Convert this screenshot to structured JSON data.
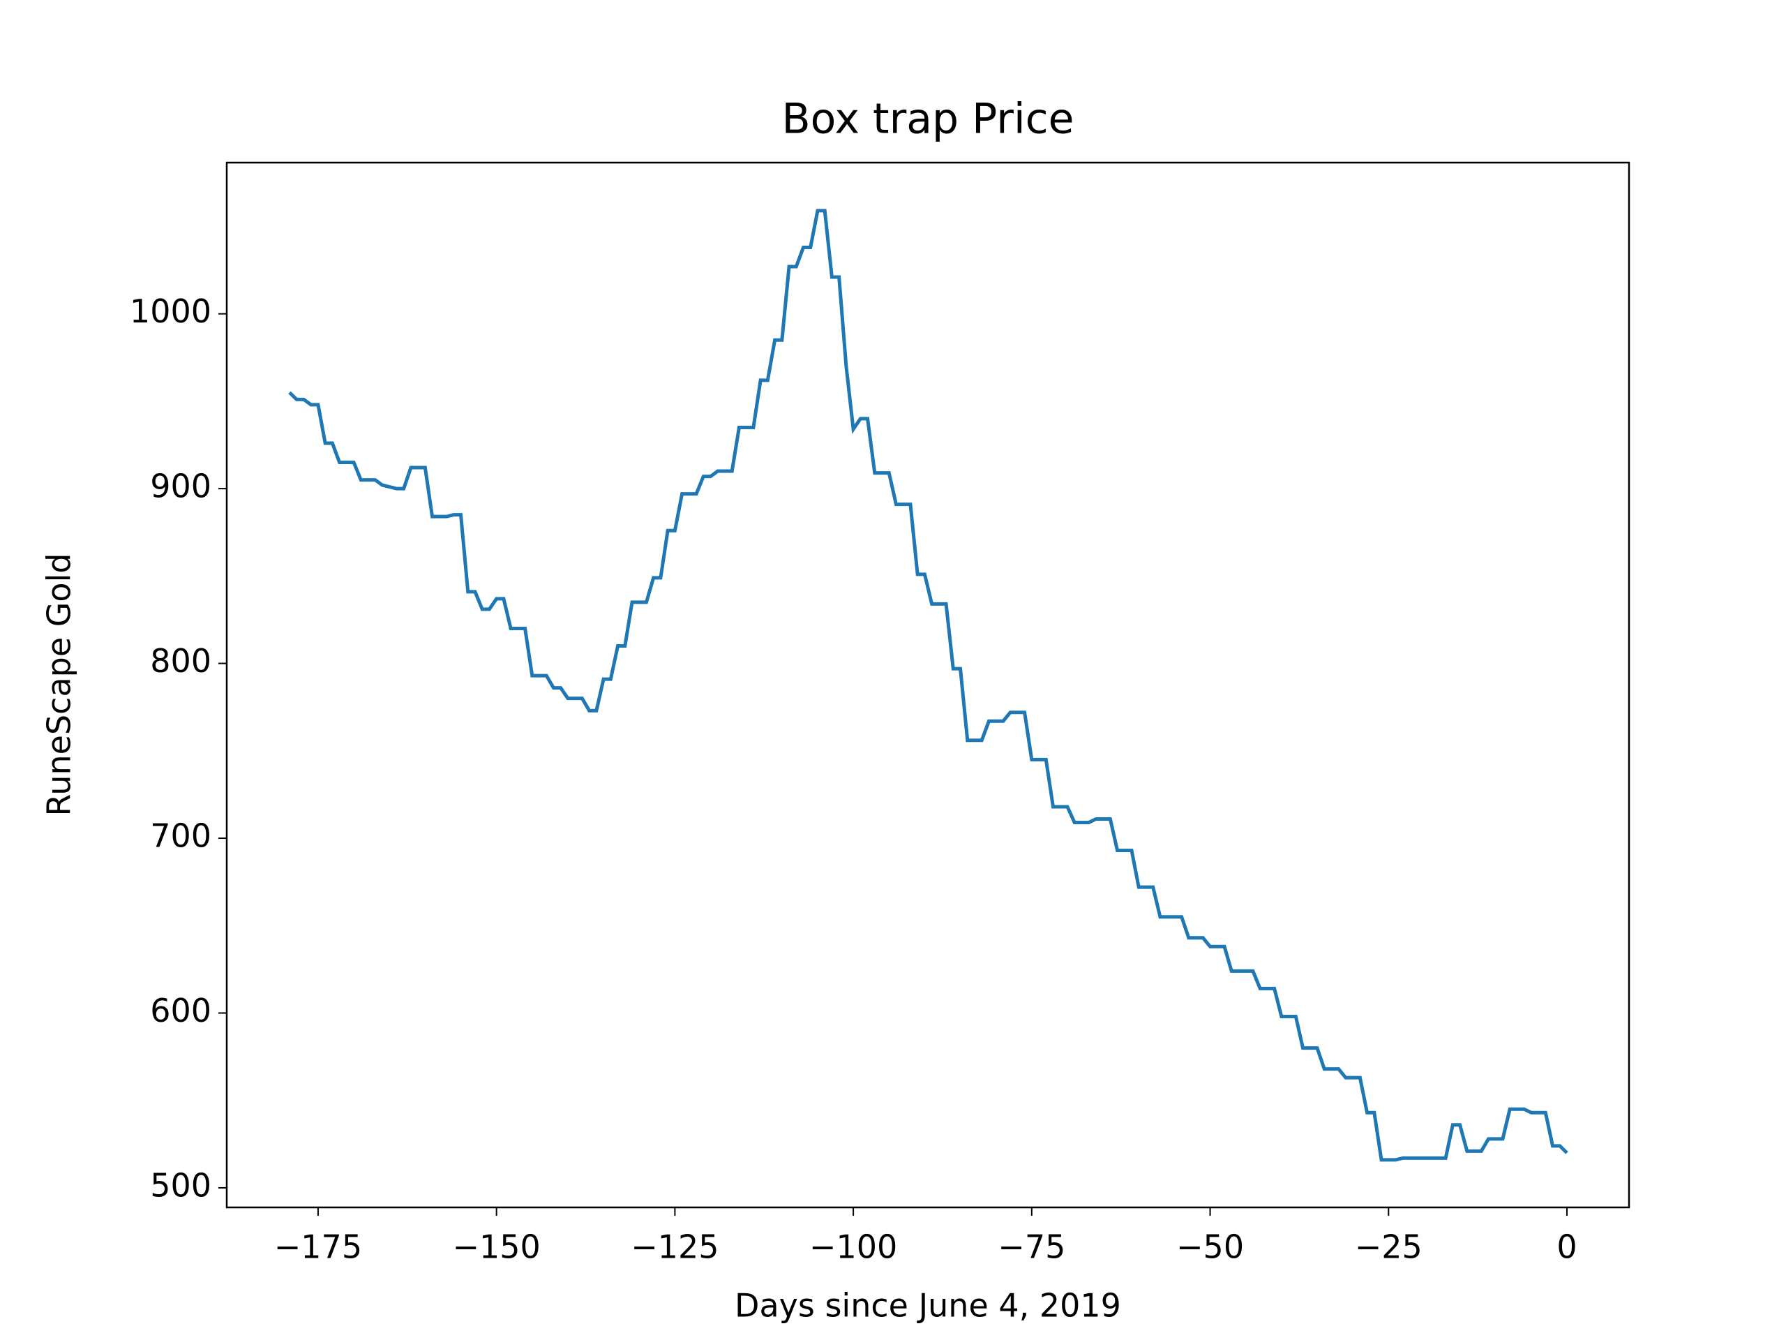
{
  "chart_data": {
    "type": "line",
    "title": "Box trap Price",
    "x_label": "Days since June 4, 2019",
    "y_label": "RuneScape Gold",
    "color": "#1f77b4",
    "x": [
      -179,
      -178,
      -177,
      -176,
      -175,
      -174,
      -173,
      -172,
      -171,
      -170,
      -169,
      -168,
      -167,
      -166,
      -165,
      -164,
      -163,
      -162,
      -161,
      -160,
      -159,
      -158,
      -157,
      -156,
      -155,
      -154,
      -153,
      -152,
      -151,
      -150,
      -149,
      -148,
      -147,
      -146,
      -145,
      -144,
      -143,
      -142,
      -141,
      -140,
      -139,
      -138,
      -137,
      -136,
      -135,
      -134,
      -133,
      -132,
      -131,
      -130,
      -129,
      -128,
      -127,
      -126,
      -125,
      -124,
      -123,
      -122,
      -121,
      -120,
      -119,
      -118,
      -117,
      -116,
      -115,
      -114,
      -113,
      -112,
      -111,
      -110,
      -109,
      -108,
      -107,
      -106,
      -105,
      -104,
      -103,
      -102,
      -101,
      -100,
      -99,
      -98,
      -97,
      -96,
      -95,
      -94,
      -93,
      -92,
      -91,
      -90,
      -89,
      -88,
      -87,
      -86,
      -85,
      -84,
      -83,
      -82,
      -81,
      -80,
      -79,
      -78,
      -77,
      -76,
      -75,
      -74,
      -73,
      -72,
      -71,
      -70,
      -69,
      -68,
      -67,
      -66,
      -65,
      -64,
      -63,
      -62,
      -61,
      -60,
      -59,
      -58,
      -57,
      -56,
      -55,
      -54,
      -53,
      -52,
      -51,
      -50,
      -49,
      -48,
      -47,
      -46,
      -45,
      -44,
      -43,
      -42,
      -41,
      -40,
      -39,
      -38,
      -37,
      -36,
      -35,
      -34,
      -33,
      -32,
      -31,
      -30,
      -29,
      -28,
      -27,
      -26,
      -25,
      -24,
      -23,
      -22,
      -21,
      -20,
      -19,
      -18,
      -17,
      -16,
      -15,
      -14,
      -13,
      -12,
      -11,
      -10,
      -9,
      -8,
      -7,
      -6,
      -5,
      -4,
      -3,
      -2,
      -1,
      0
    ],
    "values": [
      955,
      951,
      951,
      948,
      948,
      926,
      926,
      915,
      915,
      915,
      905,
      905,
      905,
      902,
      901,
      900,
      900,
      912,
      912,
      912,
      884,
      884,
      884,
      885,
      885,
      841,
      841,
      831,
      831,
      837,
      837,
      820,
      820,
      820,
      793,
      793,
      793,
      786,
      786,
      780,
      780,
      780,
      773,
      773,
      791,
      791,
      810,
      810,
      835,
      835,
      835,
      849,
      849,
      876,
      876,
      897,
      897,
      897,
      907,
      907,
      910,
      910,
      910,
      935,
      935,
      935,
      962,
      962,
      985,
      985,
      1027,
      1027,
      1038,
      1038,
      1059,
      1059,
      1021,
      1021,
      970,
      934,
      940,
      940,
      909,
      909,
      909,
      891,
      891,
      891,
      851,
      851,
      834,
      834,
      834,
      797,
      797,
      756,
      756,
      756,
      767,
      767,
      767,
      772,
      772,
      772,
      745,
      745,
      745,
      718,
      718,
      718,
      709,
      709,
      709,
      711,
      711,
      711,
      693,
      693,
      693,
      672,
      672,
      672,
      655,
      655,
      655,
      655,
      643,
      643,
      643,
      638,
      638,
      638,
      624,
      624,
      624,
      624,
      614,
      614,
      614,
      598,
      598,
      598,
      580,
      580,
      580,
      568,
      568,
      568,
      563,
      563,
      563,
      543,
      543,
      516,
      516,
      516,
      517,
      517,
      517,
      517,
      517,
      517,
      517,
      536,
      536,
      521,
      521,
      521,
      528,
      528,
      528,
      545,
      545,
      545,
      543,
      543,
      543,
      524,
      524,
      520
    ],
    "xlim": [
      -187.8,
      8.7
    ],
    "ylim": [
      488.8,
      1086.5
    ],
    "xticks": [
      {
        "value": -175,
        "label": "−175"
      },
      {
        "value": -150,
        "label": "−150"
      },
      {
        "value": -125,
        "label": "−125"
      },
      {
        "value": -100,
        "label": "−100"
      },
      {
        "value": -75,
        "label": "−75"
      },
      {
        "value": -50,
        "label": "−50"
      },
      {
        "value": -25,
        "label": "−25"
      },
      0
    ],
    "yticks": [
      500,
      600,
      700,
      800,
      900,
      1000
    ]
  }
}
